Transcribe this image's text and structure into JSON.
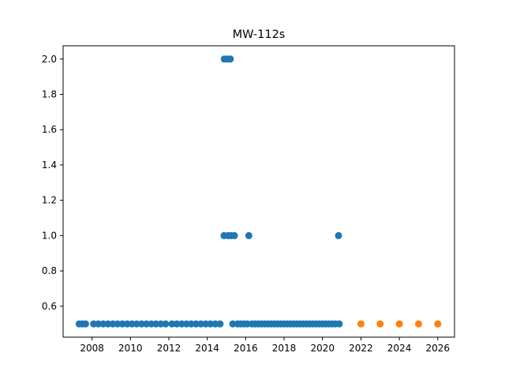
{
  "chart_data": {
    "type": "scatter",
    "title": "MW-112s",
    "xlabel": "",
    "ylabel": "",
    "xlim": [
      "2006-07-01",
      "2026-11-15"
    ],
    "ylim": [
      0.425,
      2.075
    ],
    "grid": false,
    "legend": "none",
    "x_ticks": [
      {
        "value": "2008-01-01",
        "label": "2008"
      },
      {
        "value": "2010-01-01",
        "label": "2010"
      },
      {
        "value": "2012-01-01",
        "label": "2012"
      },
      {
        "value": "2014-01-01",
        "label": "2014"
      },
      {
        "value": "2016-01-01",
        "label": "2016"
      },
      {
        "value": "2018-01-01",
        "label": "2018"
      },
      {
        "value": "2020-01-01",
        "label": "2020"
      },
      {
        "value": "2022-01-01",
        "label": "2022"
      },
      {
        "value": "2024-01-01",
        "label": "2024"
      },
      {
        "value": "2026-01-01",
        "label": "2026"
      }
    ],
    "y_ticks": [
      {
        "value": 0.6,
        "label": "0.6"
      },
      {
        "value": 0.8,
        "label": "0.8"
      },
      {
        "value": 1.0,
        "label": "1.0"
      },
      {
        "value": 1.2,
        "label": "1.2"
      },
      {
        "value": 1.4,
        "label": "1.4"
      },
      {
        "value": 1.6,
        "label": "1.6"
      },
      {
        "value": 1.8,
        "label": "1.8"
      },
      {
        "value": 2.0,
        "label": "2.0"
      }
    ],
    "series": [
      {
        "color": "#1f77b4",
        "points": [
          {
            "x": "2007-05-01",
            "y": 0.5
          },
          {
            "x": "2007-07-01",
            "y": 0.5
          },
          {
            "x": "2007-09-01",
            "y": 0.5
          },
          {
            "x": "2008-02-01",
            "y": 0.5
          },
          {
            "x": "2008-05-01",
            "y": 0.5
          },
          {
            "x": "2008-08-01",
            "y": 0.5
          },
          {
            "x": "2008-11-01",
            "y": 0.5
          },
          {
            "x": "2009-02-01",
            "y": 0.5
          },
          {
            "x": "2009-05-01",
            "y": 0.5
          },
          {
            "x": "2009-08-01",
            "y": 0.5
          },
          {
            "x": "2009-11-01",
            "y": 0.5
          },
          {
            "x": "2010-02-01",
            "y": 0.5
          },
          {
            "x": "2010-05-01",
            "y": 0.5
          },
          {
            "x": "2010-08-01",
            "y": 0.5
          },
          {
            "x": "2010-11-01",
            "y": 0.5
          },
          {
            "x": "2011-02-01",
            "y": 0.5
          },
          {
            "x": "2011-05-01",
            "y": 0.5
          },
          {
            "x": "2011-08-01",
            "y": 0.5
          },
          {
            "x": "2011-11-01",
            "y": 0.5
          },
          {
            "x": "2012-03-01",
            "y": 0.5
          },
          {
            "x": "2012-06-01",
            "y": 0.5
          },
          {
            "x": "2012-09-01",
            "y": 0.5
          },
          {
            "x": "2012-12-01",
            "y": 0.5
          },
          {
            "x": "2013-03-01",
            "y": 0.5
          },
          {
            "x": "2013-06-01",
            "y": 0.5
          },
          {
            "x": "2013-09-01",
            "y": 0.5
          },
          {
            "x": "2013-12-01",
            "y": 0.5
          },
          {
            "x": "2014-03-01",
            "y": 0.5
          },
          {
            "x": "2014-06-01",
            "y": 0.5
          },
          {
            "x": "2014-09-01",
            "y": 0.5
          },
          {
            "x": "2014-11-15",
            "y": 1.0
          },
          {
            "x": "2014-11-20",
            "y": 2.0
          },
          {
            "x": "2015-01-15",
            "y": 2.0
          },
          {
            "x": "2015-02-01",
            "y": 1.0
          },
          {
            "x": "2015-03-15",
            "y": 2.0
          },
          {
            "x": "2015-04-01",
            "y": 1.0
          },
          {
            "x": "2015-06-01",
            "y": 1.0
          },
          {
            "x": "2015-05-01",
            "y": 0.5
          },
          {
            "x": "2015-08-01",
            "y": 0.5
          },
          {
            "x": "2015-10-01",
            "y": 0.5
          },
          {
            "x": "2015-12-01",
            "y": 0.5
          },
          {
            "x": "2016-02-01",
            "y": 0.5
          },
          {
            "x": "2016-03-01",
            "y": 1.0
          },
          {
            "x": "2016-05-01",
            "y": 0.5
          },
          {
            "x": "2016-07-01",
            "y": 0.5
          },
          {
            "x": "2016-09-01",
            "y": 0.5
          },
          {
            "x": "2016-11-01",
            "y": 0.5
          },
          {
            "x": "2017-01-01",
            "y": 0.5
          },
          {
            "x": "2017-03-01",
            "y": 0.5
          },
          {
            "x": "2017-05-01",
            "y": 0.5
          },
          {
            "x": "2017-07-01",
            "y": 0.5
          },
          {
            "x": "2017-09-01",
            "y": 0.5
          },
          {
            "x": "2017-11-01",
            "y": 0.5
          },
          {
            "x": "2018-01-01",
            "y": 0.5
          },
          {
            "x": "2018-03-01",
            "y": 0.5
          },
          {
            "x": "2018-05-01",
            "y": 0.5
          },
          {
            "x": "2018-07-01",
            "y": 0.5
          },
          {
            "x": "2018-09-01",
            "y": 0.5
          },
          {
            "x": "2018-11-01",
            "y": 0.5
          },
          {
            "x": "2019-01-01",
            "y": 0.5
          },
          {
            "x": "2019-03-01",
            "y": 0.5
          },
          {
            "x": "2019-05-01",
            "y": 0.5
          },
          {
            "x": "2019-07-01",
            "y": 0.5
          },
          {
            "x": "2019-09-01",
            "y": 0.5
          },
          {
            "x": "2019-11-01",
            "y": 0.5
          },
          {
            "x": "2020-01-01",
            "y": 0.5
          },
          {
            "x": "2020-03-01",
            "y": 0.5
          },
          {
            "x": "2020-05-01",
            "y": 0.5
          },
          {
            "x": "2020-07-01",
            "y": 0.5
          },
          {
            "x": "2020-09-01",
            "y": 0.5
          },
          {
            "x": "2020-11-01",
            "y": 1.0
          },
          {
            "x": "2020-11-15",
            "y": 0.5
          }
        ]
      },
      {
        "color": "#ff7f0e",
        "points": [
          {
            "x": "2022-01-01",
            "y": 0.5
          },
          {
            "x": "2023-01-01",
            "y": 0.5
          },
          {
            "x": "2024-01-01",
            "y": 0.5
          },
          {
            "x": "2025-01-01",
            "y": 0.5
          },
          {
            "x": "2026-01-01",
            "y": 0.5
          }
        ]
      }
    ]
  }
}
